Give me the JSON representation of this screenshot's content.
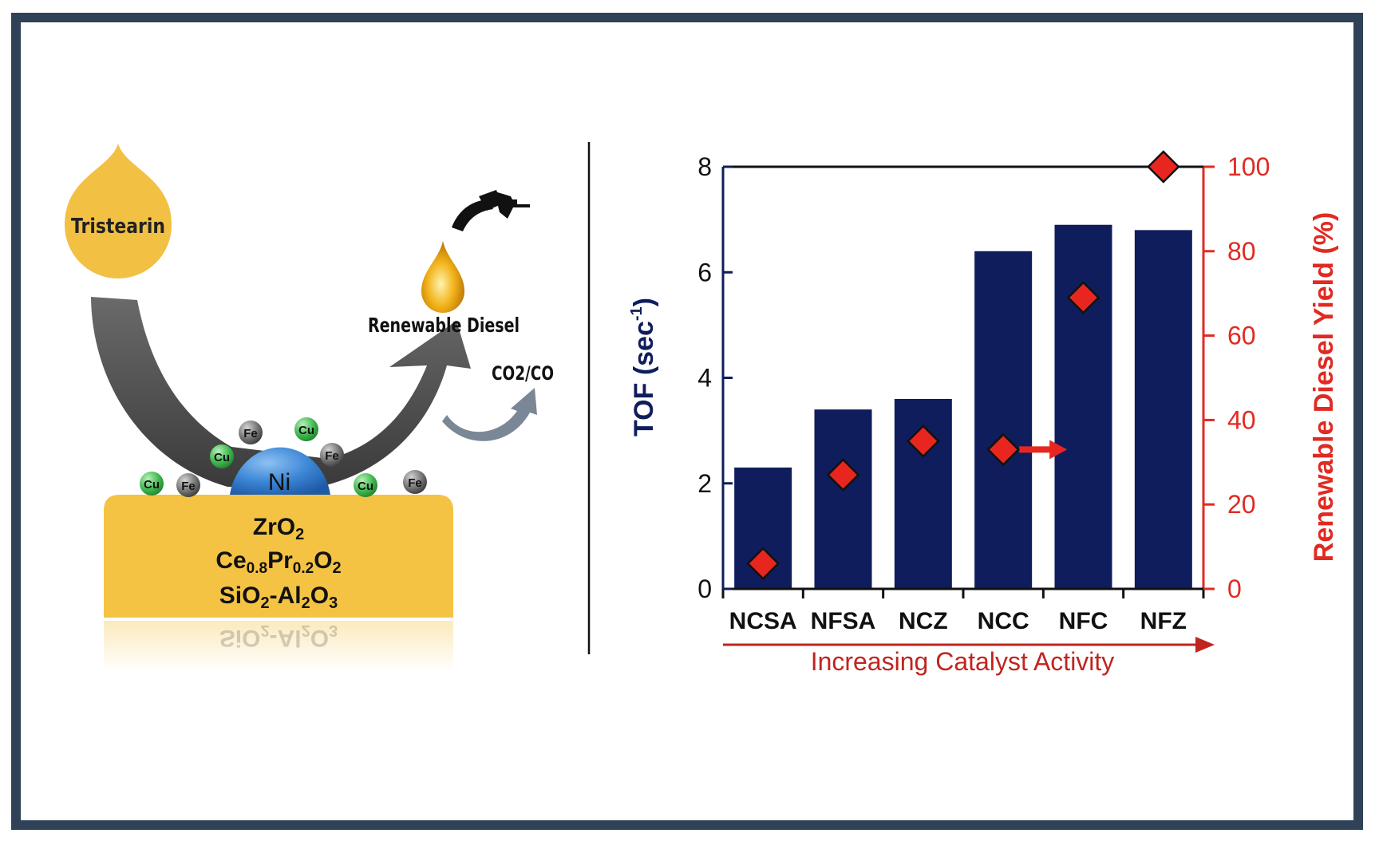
{
  "colors": {
    "frame": "#2f4257",
    "bar": "#0f1d5c",
    "yield": "#e8261f",
    "yield_axis": "#e02a22",
    "trend": "#c0251f",
    "support": "#f5c343",
    "droplet": "#f2c143",
    "arrow": "#5a5a5a",
    "ni": "#3b86d6",
    "cu": "#3bb54a",
    "fe": "#6e6e6e"
  },
  "scheme": {
    "feed_label": "Tristearin",
    "product_label": "Renewable Diesel",
    "byproduct_label": "CO2/CO",
    "active_metal": "Ni",
    "promoters": [
      "Cu",
      "Fe",
      "Cu",
      "Fe",
      "Cu",
      "Fe",
      "Cu",
      "Fe"
    ],
    "supports": [
      "ZrO2",
      "Ce0.8Pr0.2O2",
      "SiO2-Al2O3"
    ],
    "icons": [
      "droplet-icon",
      "fuel-nozzle-icon",
      "oil-drop-icon",
      "curved-arrow-icon"
    ]
  },
  "chart_data": {
    "type": "bar",
    "categories": [
      "NCSA",
      "NFSA",
      "NCZ",
      "NCC",
      "NFC",
      "NFZ"
    ],
    "series": [
      {
        "axis": "left",
        "kind": "bar",
        "values": [
          2.3,
          3.4,
          3.6,
          6.4,
          6.9,
          6.8
        ]
      },
      {
        "axis": "right",
        "kind": "scatter",
        "marker": "diamond",
        "values": [
          6,
          27,
          35,
          33,
          69,
          100
        ]
      }
    ],
    "ylabel": "TOF (sec",
    "ylabel_sup": "-1",
    "ylabel_close": ")",
    "ylim": [
      0,
      8
    ],
    "yticks": [
      "0",
      "2",
      "4",
      "6",
      "8"
    ],
    "y2label": "Renewable Diesel Yield (%)",
    "y2lim": [
      0,
      100
    ],
    "y2ticks": [
      "0",
      "20",
      "40",
      "60",
      "80",
      "100"
    ],
    "xlabel": "Increasing Catalyst Activity",
    "grid": false,
    "annotation": "arrow from NCC yield marker pointing to right axis"
  }
}
